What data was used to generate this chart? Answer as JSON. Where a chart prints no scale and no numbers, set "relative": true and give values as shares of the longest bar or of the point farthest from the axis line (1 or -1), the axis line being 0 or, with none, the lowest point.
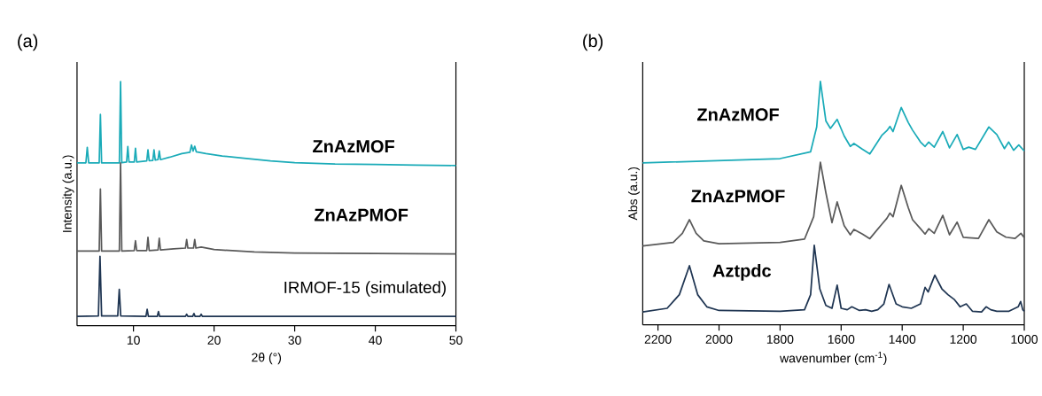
{
  "chart_data": [
    {
      "type": "line",
      "title": "(a)",
      "xlabel": "2θ (°)",
      "ylabel": "Intensity (a.u.)",
      "relative": true,
      "xlim": [
        3,
        50
      ],
      "xticks": [
        10,
        20,
        30,
        40,
        50
      ],
      "tick_labels": "x",
      "series": [
        {
          "name": "ZnAzMOF",
          "color": "#1aabb8",
          "x": [
            3,
            4.1,
            4.27,
            4.45,
            5.75,
            5.9,
            6.05,
            8.25,
            8.4,
            8.55,
            9.15,
            9.3,
            9.45,
            10.1,
            10.25,
            10.4,
            11.65,
            11.8,
            11.95,
            12.4,
            12.55,
            12.7,
            13.05,
            13.2,
            13.35,
            14.5,
            16,
            17.0,
            17.2,
            17.4,
            17.6,
            17.8,
            19,
            21,
            24,
            27,
            30,
            35,
            40,
            45,
            50
          ],
          "values": [
            0.667,
            0.667,
            0.73,
            0.667,
            0.667,
            0.865,
            0.667,
            0.667,
            1.0,
            0.668,
            0.67,
            0.734,
            0.67,
            0.67,
            0.727,
            0.67,
            0.675,
            0.72,
            0.676,
            0.677,
            0.72,
            0.678,
            0.68,
            0.716,
            0.68,
            0.69,
            0.705,
            0.71,
            0.74,
            0.715,
            0.735,
            0.712,
            0.705,
            0.695,
            0.685,
            0.675,
            0.668,
            0.662,
            0.66,
            0.658,
            0.656
          ]
        },
        {
          "name": "ZnAzPMOF",
          "color": "#595959",
          "x": [
            3,
            5.75,
            5.9,
            6.05,
            8.25,
            8.4,
            8.55,
            10.1,
            10.25,
            10.4,
            11.65,
            11.8,
            11.95,
            13.05,
            13.2,
            13.35,
            15,
            16.45,
            16.6,
            16.75,
            17.45,
            17.6,
            17.75,
            18.4,
            20,
            25,
            30,
            40,
            50
          ],
          "values": [
            0.306,
            0.306,
            0.56,
            0.306,
            0.306,
            0.667,
            0.306,
            0.308,
            0.348,
            0.308,
            0.308,
            0.362,
            0.308,
            0.31,
            0.358,
            0.31,
            0.315,
            0.318,
            0.353,
            0.318,
            0.318,
            0.353,
            0.318,
            0.322,
            0.312,
            0.302,
            0.298,
            0.296,
            0.294
          ]
        },
        {
          "name": "IRMOF-15 (simulated)",
          "color": "#1f3552",
          "x": [
            3,
            5.65,
            5.85,
            6.05,
            8.05,
            8.24,
            8.42,
            11.55,
            11.7,
            11.85,
            12.95,
            13.1,
            13.25,
            16.45,
            16.6,
            16.75,
            17.35,
            17.5,
            17.65,
            18.25,
            18.4,
            18.55,
            50
          ],
          "values": [
            0.038,
            0.04,
            0.284,
            0.04,
            0.04,
            0.149,
            0.04,
            0.038,
            0.067,
            0.038,
            0.038,
            0.058,
            0.038,
            0.038,
            0.047,
            0.038,
            0.038,
            0.05,
            0.038,
            0.038,
            0.047,
            0.038,
            0.038
          ]
        }
      ]
    },
    {
      "type": "line",
      "title": "(b)",
      "xlabel": "wavenumber (cm$^{-1}$)",
      "ylabel": "Abs (a.u.)",
      "relative": true,
      "xlim": [
        2250,
        1000
      ],
      "xticks": [
        2200,
        2000,
        1800,
        1600,
        1400,
        1200,
        1000
      ],
      "tick_labels": "x",
      "series": [
        {
          "name": "ZnAzMOF",
          "color": "#1aabb8",
          "x": [
            2250,
            1800,
            1700,
            1680,
            1668,
            1650,
            1635,
            1613,
            1590,
            1570,
            1558,
            1530,
            1506,
            1467,
            1450,
            1440,
            1430,
            1403,
            1380,
            1366,
            1340,
            1325,
            1313,
            1295,
            1267,
            1245,
            1220,
            1200,
            1182,
            1160,
            1116,
            1090,
            1065,
            1051,
            1035,
            1018,
            1000
          ],
          "values": [
            0.665,
            0.683,
            0.711,
            0.813,
            1.0,
            0.838,
            0.807,
            0.844,
            0.776,
            0.733,
            0.745,
            0.721,
            0.702,
            0.778,
            0.798,
            0.815,
            0.794,
            0.893,
            0.831,
            0.8,
            0.751,
            0.733,
            0.751,
            0.73,
            0.794,
            0.727,
            0.782,
            0.721,
            0.73,
            0.721,
            0.813,
            0.782,
            0.724,
            0.751,
            0.717,
            0.739,
            0.714
          ]
        },
        {
          "name": "ZnAzPMOF",
          "color": "#595959",
          "x": [
            2250,
            2150,
            2120,
            2097,
            2075,
            2050,
            2000,
            1800,
            1720,
            1690,
            1668,
            1650,
            1630,
            1613,
            1590,
            1570,
            1558,
            1530,
            1506,
            1467,
            1450,
            1440,
            1430,
            1403,
            1380,
            1366,
            1340,
            1325,
            1313,
            1295,
            1267,
            1245,
            1220,
            1200,
            1182,
            1150,
            1116,
            1090,
            1060,
            1030,
            1011,
            1000
          ],
          "values": [
            0.324,
            0.339,
            0.376,
            0.432,
            0.376,
            0.345,
            0.333,
            0.339,
            0.352,
            0.444,
            0.668,
            0.543,
            0.42,
            0.505,
            0.407,
            0.37,
            0.392,
            0.373,
            0.354,
            0.413,
            0.438,
            0.459,
            0.444,
            0.573,
            0.481,
            0.432,
            0.395,
            0.373,
            0.395,
            0.376,
            0.45,
            0.37,
            0.422,
            0.36,
            0.358,
            0.355,
            0.432,
            0.382,
            0.36,
            0.355,
            0.376,
            0.358
          ]
        },
        {
          "name": "Aztpdc",
          "color": "#1f3552",
          "x": [
            2250,
            2170,
            2130,
            2097,
            2070,
            2040,
            2000,
            1800,
            1720,
            1700,
            1688,
            1670,
            1650,
            1630,
            1613,
            1600,
            1580,
            1565,
            1540,
            1520,
            1500,
            1480,
            1460,
            1443,
            1420,
            1400,
            1370,
            1340,
            1325,
            1315,
            1293,
            1270,
            1250,
            1230,
            1210,
            1190,
            1170,
            1140,
            1125,
            1110,
            1090,
            1050,
            1020,
            1012,
            1005,
            1000
          ],
          "values": [
            0.053,
            0.068,
            0.124,
            0.243,
            0.124,
            0.074,
            0.059,
            0.056,
            0.062,
            0.124,
            0.327,
            0.148,
            0.08,
            0.068,
            0.163,
            0.068,
            0.062,
            0.074,
            0.059,
            0.062,
            0.056,
            0.062,
            0.086,
            0.166,
            0.086,
            0.074,
            0.068,
            0.086,
            0.154,
            0.135,
            0.204,
            0.148,
            0.124,
            0.105,
            0.074,
            0.086,
            0.056,
            0.053,
            0.074,
            0.062,
            0.056,
            0.056,
            0.074,
            0.096,
            0.062,
            0.056
          ]
        }
      ]
    }
  ]
}
